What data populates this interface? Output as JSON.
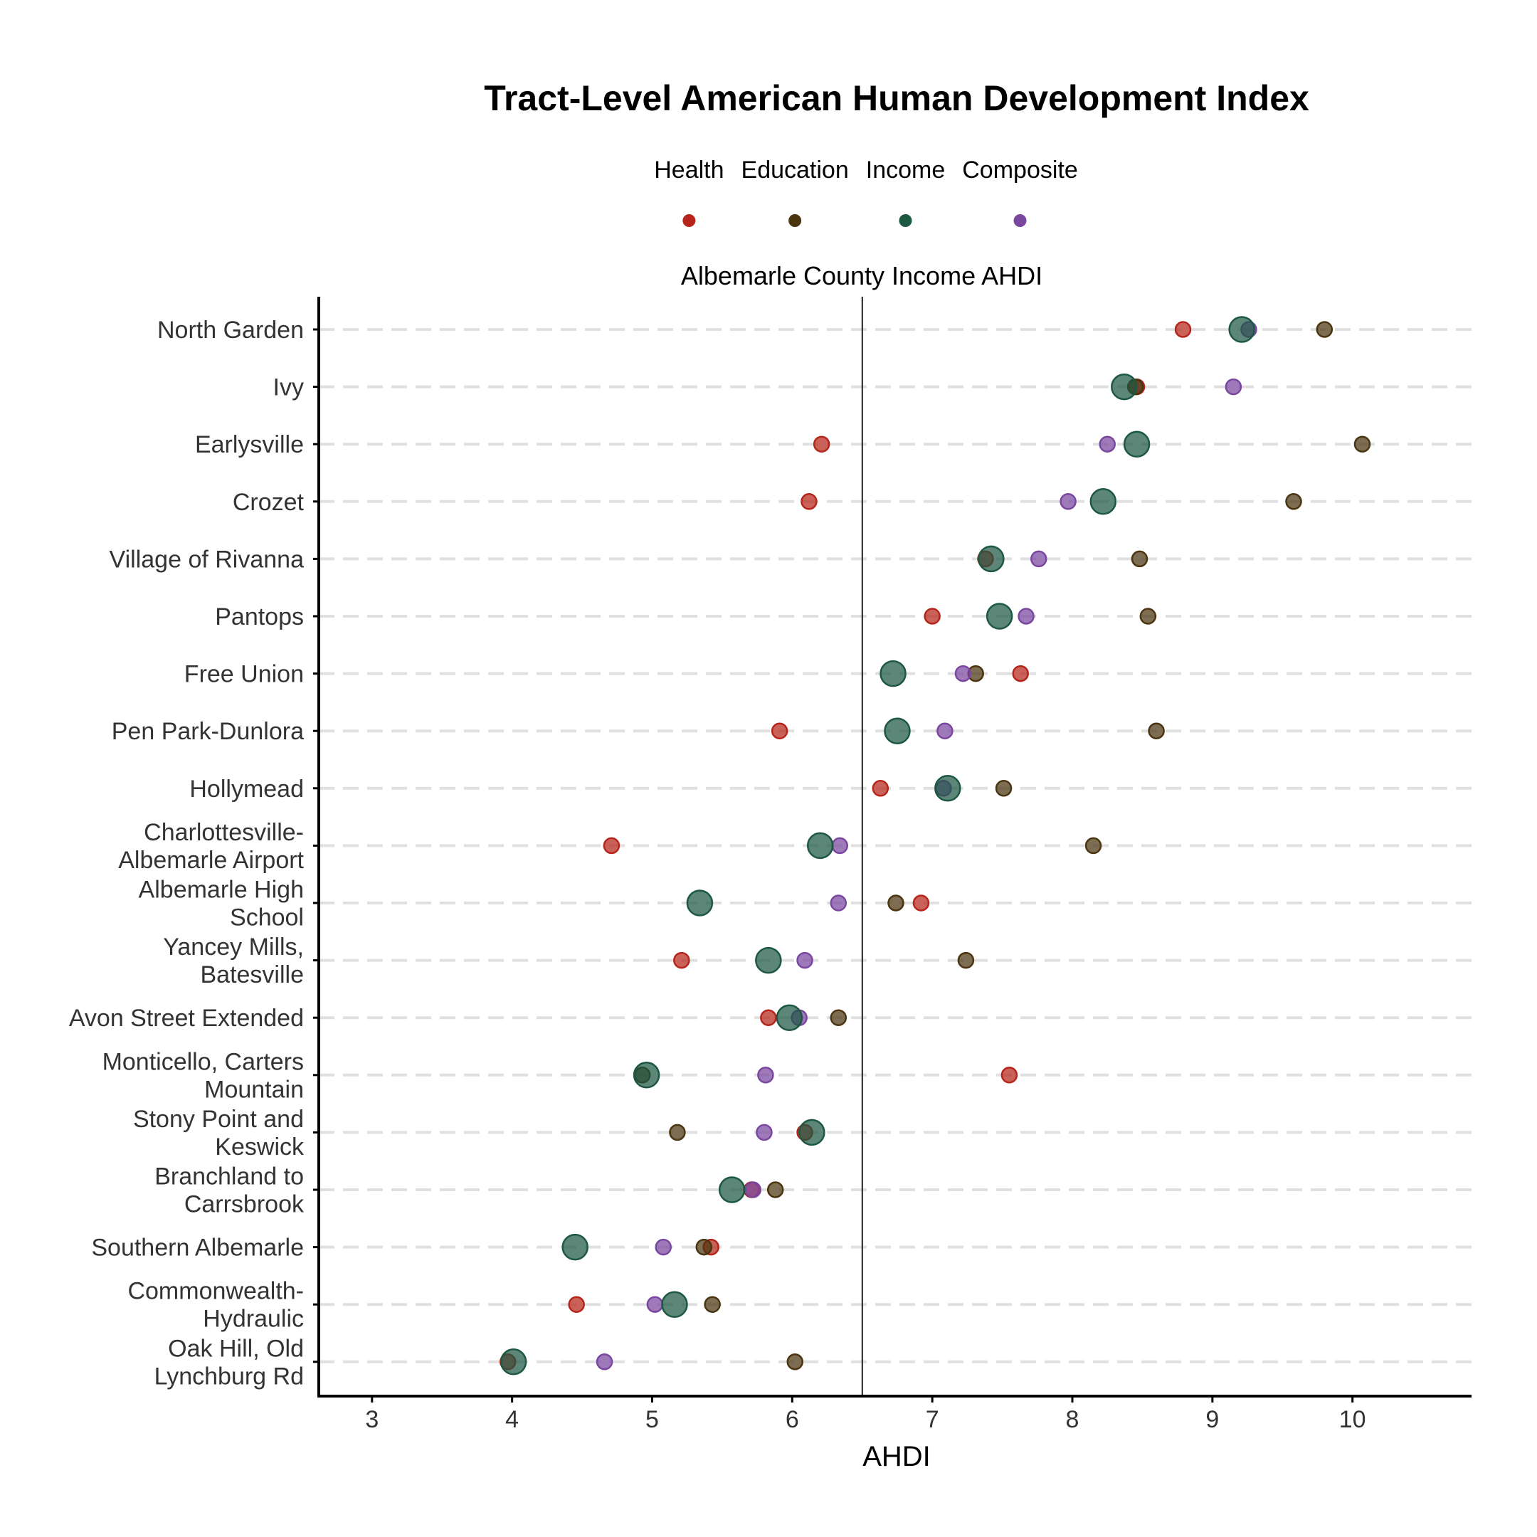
{
  "chart_data": {
    "type": "scatter",
    "title": "Tract-Level American Human Development Index",
    "xlabel": "AHDI",
    "ylabel": "",
    "xlim": [
      2.62,
      10.85
    ],
    "xticks": [
      3,
      4,
      5,
      6,
      7,
      8,
      9,
      10
    ],
    "grid": "horizontal dashed",
    "legend_position": "top",
    "reference_line": {
      "label": "Albemarle County Income AHDI",
      "x": 6.5
    },
    "categories": [
      [
        "North Garden"
      ],
      [
        "Ivy"
      ],
      [
        "Earlysville"
      ],
      [
        "Crozet"
      ],
      [
        "Village of Rivanna"
      ],
      [
        "Pantops"
      ],
      [
        "Free Union"
      ],
      [
        "Pen Park-Dunlora"
      ],
      [
        "Hollymead"
      ],
      [
        "Charlottesville-",
        "Albemarle Airport"
      ],
      [
        "Albemarle High",
        "School"
      ],
      [
        "Yancey Mills,",
        "Batesville"
      ],
      [
        "Avon Street Extended"
      ],
      [
        "Monticello, Carters",
        "Mountain"
      ],
      [
        "Stony Point and",
        "Keswick"
      ],
      [
        "Branchland to",
        "Carrsbrook"
      ],
      [
        "Southern Albemarle"
      ],
      [
        "Commonwealth-",
        "Hydraulic"
      ],
      [
        "Oak Hill, Old",
        "Lynchburg Rd"
      ]
    ],
    "series": [
      {
        "name": "Health",
        "color": "#b5251b",
        "values": [
          8.79,
          8.46,
          6.21,
          6.12,
          7.38,
          7.0,
          7.63,
          5.91,
          6.63,
          4.71,
          6.92,
          5.21,
          5.83,
          7.55,
          6.09,
          5.71,
          5.42,
          4.46,
          3.97
        ]
      },
      {
        "name": "Education",
        "color": "#4a3510",
        "values": [
          9.8,
          8.45,
          10.07,
          9.58,
          8.48,
          8.54,
          7.31,
          8.6,
          7.51,
          8.15,
          6.74,
          7.24,
          6.33,
          4.93,
          5.18,
          5.88,
          5.37,
          5.43,
          6.02
        ]
      },
      {
        "name": "Income",
        "color": "#1d5843",
        "values": [
          9.21,
          8.37,
          8.46,
          8.22,
          7.42,
          7.48,
          6.72,
          6.75,
          7.11,
          6.2,
          5.34,
          5.83,
          5.98,
          4.96,
          6.14,
          5.57,
          4.45,
          5.16,
          4.01
        ]
      },
      {
        "name": "Composite",
        "color": "#7a47a0",
        "values": [
          9.26,
          9.15,
          8.25,
          7.97,
          7.76,
          7.67,
          7.22,
          7.09,
          7.08,
          6.34,
          6.33,
          6.09,
          6.05,
          5.81,
          5.8,
          5.72,
          5.08,
          5.02,
          4.66
        ]
      }
    ]
  }
}
